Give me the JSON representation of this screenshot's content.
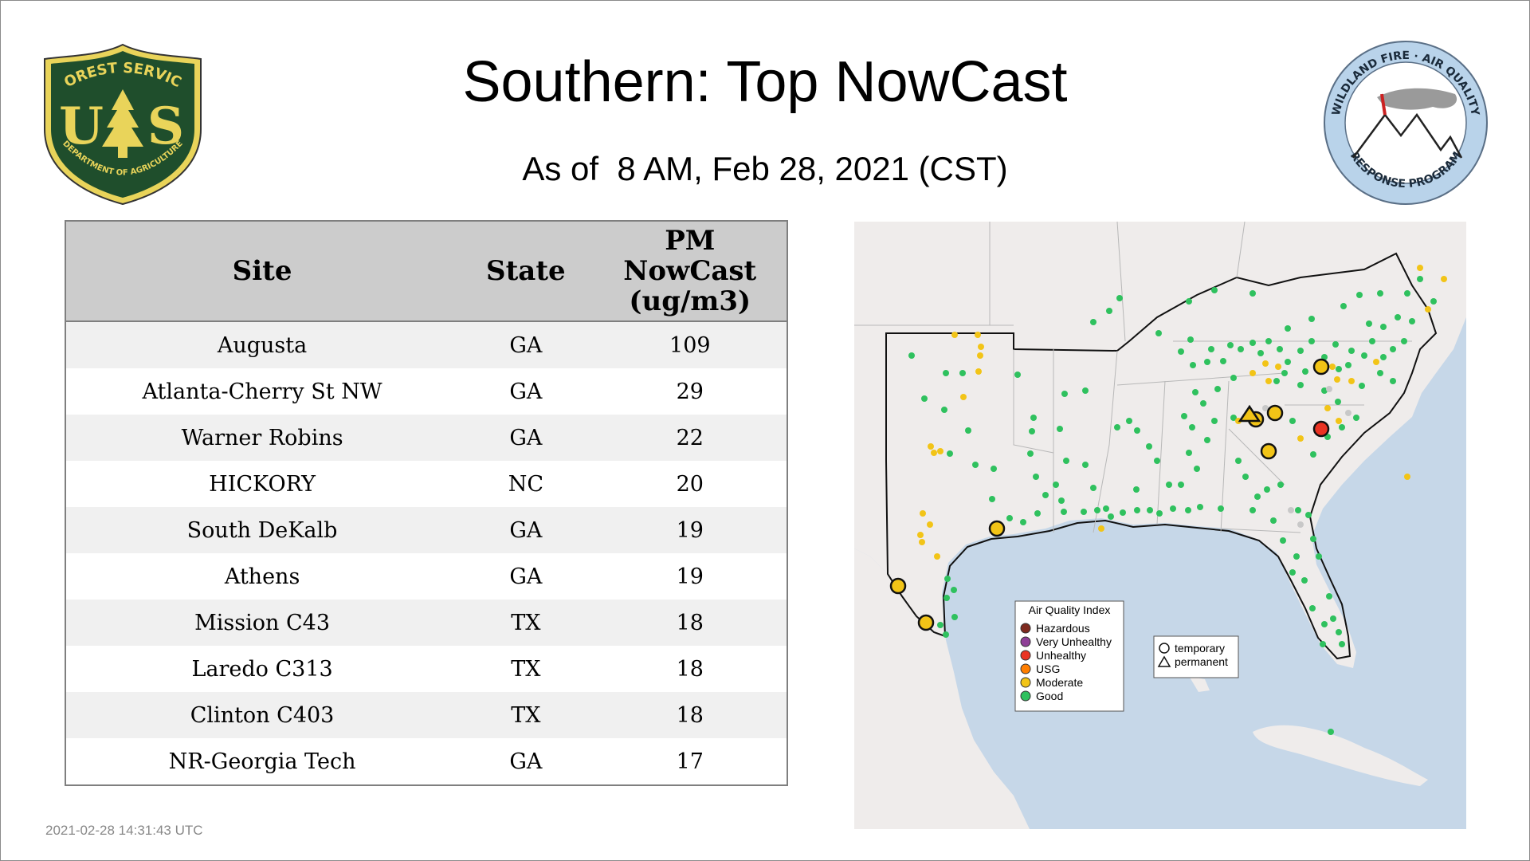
{
  "page": {
    "title": "Southern: Top NowCast",
    "subtitle": "As of  8 AM, Feb 28, 2021 (CST)",
    "timestamp": "2021-02-28 14:31:43 UTC"
  },
  "logos": {
    "forest_service": {
      "top_text": "FOREST SERVICE",
      "letters_left": "U",
      "letters_right": "S",
      "bottom_text": "DEPARTMENT OF AGRICULTURE",
      "colors": {
        "shield": "#1f4e2c",
        "gold": "#e9d45a"
      }
    },
    "wildland": {
      "top_text": "WILDLAND FIRE · AIR QUALITY",
      "bottom_text": "RESPONSE PROGRAM",
      "colors": {
        "ring": "#b9d3ea",
        "smoke": "#9a9a9a",
        "flag": "#cc2222"
      }
    }
  },
  "table": {
    "headers": {
      "site": "Site",
      "state": "State",
      "pm_line1": "PM",
      "pm_line2": "NowCast",
      "pm_line3": "(ug/m3)"
    },
    "rows": [
      {
        "site": "Augusta",
        "state": "GA",
        "pm": "109"
      },
      {
        "site": "Atlanta-Cherry St NW",
        "state": "GA",
        "pm": "29"
      },
      {
        "site": "Warner Robins",
        "state": "GA",
        "pm": "22"
      },
      {
        "site": "HICKORY",
        "state": "NC",
        "pm": "20"
      },
      {
        "site": "South DeKalb",
        "state": "GA",
        "pm": "19"
      },
      {
        "site": "Athens",
        "state": "GA",
        "pm": "19"
      },
      {
        "site": "Mission C43",
        "state": "TX",
        "pm": "18"
      },
      {
        "site": "Laredo C313",
        "state": "TX",
        "pm": "18"
      },
      {
        "site": "Clinton C403",
        "state": "TX",
        "pm": "18"
      },
      {
        "site": "NR-Georgia Tech",
        "state": "GA",
        "pm": "17"
      }
    ]
  },
  "map": {
    "legend": {
      "title": "Air Quality Index",
      "items": [
        {
          "label": "Hazardous",
          "color": "#7e2a1f"
        },
        {
          "label": "Very Unhealthy",
          "color": "#8f3f97"
        },
        {
          "label": "Unhealthy",
          "color": "#ea3323"
        },
        {
          "label": "USG",
          "color": "#ff7e00"
        },
        {
          "label": "Moderate",
          "color": "#f2c417"
        },
        {
          "label": "Good",
          "color": "#2fc15e"
        }
      ]
    },
    "shape_legend": {
      "temporary": "temporary",
      "permanent": "permanent"
    },
    "colors": {
      "water": "#c6d7e8",
      "land": "#efeceb",
      "good": "#2fc15e",
      "moderate": "#f2c417",
      "unhealthy": "#ea3323",
      "nodata": "#c8c8c8"
    }
  }
}
